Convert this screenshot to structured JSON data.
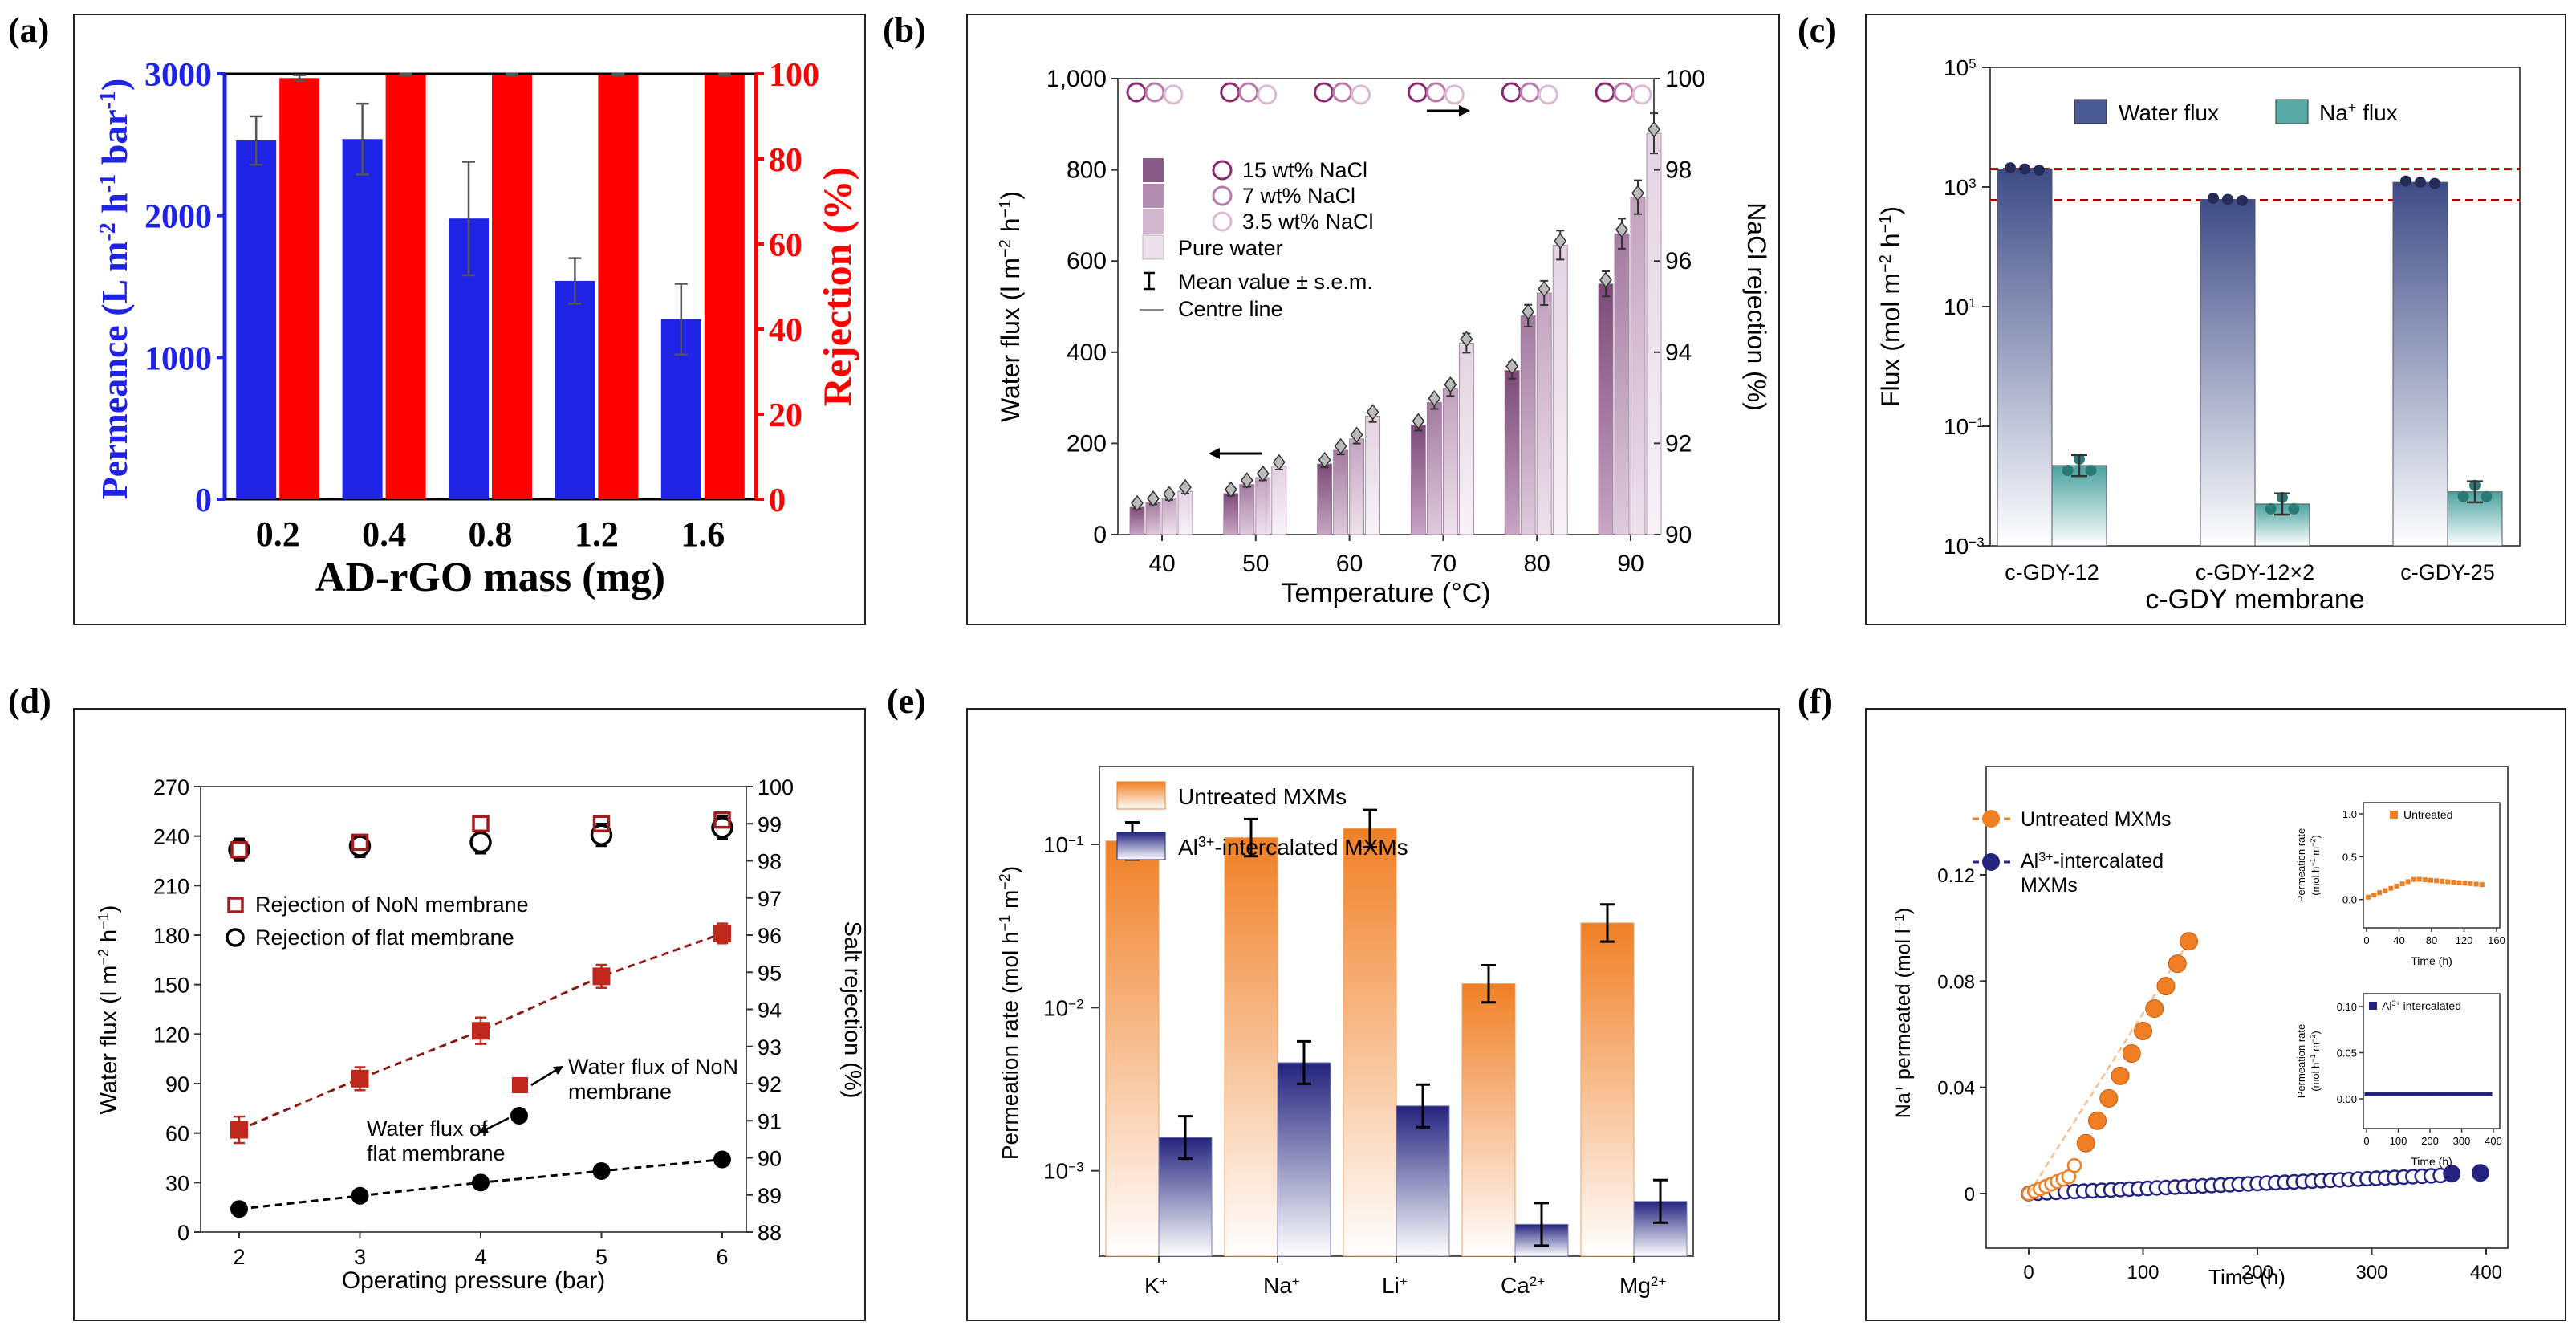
{
  "colors": {
    "blue": "#1f23e6",
    "red": "#ff0000",
    "purple_dark": "#8a5a86",
    "purple_mid": "#b48cb0",
    "purple_light": "#d2b6cf",
    "pure_water": "#ece0ea",
    "gdy_blue": "#4a5a92",
    "gdy_teal": "#57aaa6",
    "orange": "#f07f24",
    "navy": "#23237f",
    "darkred": "#a11c1c"
  },
  "chart_data": [
    {
      "panel": "(a)",
      "type": "bar",
      "categories": [
        "0.2",
        "0.4",
        "0.8",
        "1.2",
        "1.6"
      ],
      "xlabel": "AD-rGO mass (mg)",
      "ylabel_left": "Permeance (L m-2 h-1 bar-1)",
      "ylabel_right": "Rejection (%)",
      "ylim_left": [
        0,
        3000
      ],
      "ylim_right": [
        0,
        100
      ],
      "yticks_left": [
        "0",
        "1000",
        "2000",
        "3000"
      ],
      "yticks_right": [
        "0",
        "20",
        "40",
        "60",
        "80",
        "100"
      ],
      "series": [
        {
          "name": "Permeance",
          "axis": "left",
          "values": [
            2530,
            2540,
            1980,
            1540,
            1270
          ],
          "errors": [
            170,
            250,
            400,
            160,
            250
          ]
        },
        {
          "name": "Rejection",
          "axis": "right",
          "values": [
            99,
            99.8,
            99.8,
            99.8,
            99.8
          ],
          "errors": [
            0.7,
            0.2,
            0.2,
            0.2,
            0.2
          ]
        }
      ]
    },
    {
      "panel": "(b)",
      "type": "bar",
      "categories": [
        "40",
        "50",
        "60",
        "70",
        "80",
        "90"
      ],
      "xlabel": "Temperature (°C)",
      "ylabel_left": "Water flux (l m-2 h-1)",
      "ylabel_right": "NaCl rejection (%)",
      "ylim_left": [
        0,
        1000
      ],
      "ylim_right": [
        90,
        100
      ],
      "yticks_left": [
        "0",
        "200",
        "400",
        "600",
        "800",
        "1,000"
      ],
      "yticks_right": [
        "90",
        "92",
        "94",
        "96",
        "98",
        "100"
      ],
      "legend": [
        "15 wt% NaCl",
        "7 wt% NaCl",
        "3.5 wt% NaCl",
        "Pure water",
        "Mean value ± s.e.m.",
        "Centre line"
      ],
      "series": [
        {
          "name": "15 wt% NaCl",
          "flux": [
            60,
            90,
            155,
            240,
            360,
            550
          ],
          "rejection": [
            99.7,
            99.7,
            99.7,
            99.7,
            99.7,
            99.7
          ]
        },
        {
          "name": "7 wt% NaCl",
          "flux": [
            70,
            110,
            185,
            290,
            480,
            660
          ],
          "rejection": [
            99.7,
            99.7,
            99.7,
            99.7,
            99.7,
            99.7
          ]
        },
        {
          "name": "3.5 wt% NaCl",
          "flux": [
            80,
            125,
            210,
            320,
            530,
            740
          ],
          "rejection": [
            99.65,
            99.65,
            99.65,
            99.65,
            99.65,
            99.65
          ]
        },
        {
          "name": "Pure water",
          "flux": [
            95,
            150,
            260,
            420,
            635,
            880
          ],
          "rejection": []
        }
      ]
    },
    {
      "panel": "(c)",
      "type": "bar",
      "scale": "log",
      "categories": [
        "c-GDY-12",
        "c-GDY-12×2",
        "c-GDY-25"
      ],
      "xlabel": "c-GDY membrane",
      "ylabel": "Flux (mol m-2 h-1)",
      "ylim": [
        0.001,
        100000
      ],
      "yticks": [
        "10-3",
        "10-1",
        "101",
        "103",
        "105"
      ],
      "reference_lines": [
        2000,
        600
      ],
      "series": [
        {
          "name": "Water flux",
          "values": [
            2000,
            620,
            1200
          ]
        },
        {
          "name": "Na+ flux",
          "values": [
            0.022,
            0.005,
            0.008
          ]
        }
      ]
    },
    {
      "panel": "(d)",
      "type": "scatter",
      "xlabel": "Operating pressure (bar)",
      "ylabel_left": "Water flux (l m-2 h-1)",
      "ylabel_right": "Salt rejection (%)",
      "x": [
        2,
        3,
        4,
        5,
        6
      ],
      "xlim": [
        1.7,
        6.3
      ],
      "ylim_left": [
        0,
        270
      ],
      "ylim_right": [
        88,
        100
      ],
      "yticks_left": [
        "0",
        "30",
        "60",
        "90",
        "120",
        "150",
        "180",
        "210",
        "240",
        "270"
      ],
      "yticks_right": [
        "88",
        "89",
        "90",
        "91",
        "92",
        "93",
        "94",
        "95",
        "96",
        "97",
        "98",
        "99",
        "100"
      ],
      "xticks": [
        "2",
        "3",
        "4",
        "5",
        "6"
      ],
      "series": [
        {
          "name": "Rejection of NoN membrane",
          "axis": "right",
          "values": [
            98.3,
            98.5,
            99.0,
            99.0,
            99.1
          ]
        },
        {
          "name": "Rejection of flat membrane",
          "axis": "right",
          "values": [
            98.3,
            98.4,
            98.5,
            98.7,
            98.9
          ]
        },
        {
          "name": "Water flux of NoN membrane",
          "axis": "left",
          "values": [
            62,
            93,
            122,
            155,
            181
          ],
          "errors": [
            8,
            7,
            8,
            7,
            6
          ]
        },
        {
          "name": "Water flux of flat membrane",
          "axis": "left",
          "values": [
            14,
            22,
            30,
            37,
            44
          ]
        }
      ],
      "annotations": [
        "Water flux of NoN membrane",
        "Water flux of flat membrane"
      ]
    },
    {
      "panel": "(e)",
      "type": "bar",
      "scale": "log",
      "categories": [
        "K+",
        "Na+",
        "Li+",
        "Ca2+",
        "Mg2+"
      ],
      "ylabel": "Permeation rate (mol h-1 m-2)",
      "ylim": [
        0.0003,
        0.3
      ],
      "yticks": [
        "10-3",
        "10-2",
        "10-1"
      ],
      "series": [
        {
          "name": "Untreated MXMs",
          "values": [
            0.105,
            0.11,
            0.125,
            0.014,
            0.033
          ]
        },
        {
          "name": "Al3+-intercalated MXMs",
          "values": [
            0.0016,
            0.0046,
            0.0025,
            0.00047,
            0.00065
          ]
        }
      ]
    },
    {
      "panel": "(f)",
      "type": "scatter",
      "xlabel": "Time (h)",
      "ylabel": "Na+ permeated (mol l-1)",
      "xlim": [
        -25,
        420
      ],
      "ylim": [
        -0.008,
        0.135
      ],
      "xticks": [
        "0",
        "100",
        "200",
        "300",
        "400"
      ],
      "yticks": [
        "0",
        "0.04",
        "0.08",
        "0.12"
      ],
      "series": [
        {
          "name": "Untreated MXMs",
          "x_range": [
            0,
            140
          ],
          "y_end": 0.095
        },
        {
          "name": "Al3+-intercalated MXMs",
          "x_range": [
            0,
            395
          ],
          "y_end": 0.008
        }
      ],
      "insets": [
        {
          "title": "Untreated",
          "ylabel": "Permeation rate (mol h-1 m-2)",
          "xlabel": "Time (h)",
          "yticks": [
            "0.0",
            "0.5",
            "1.0"
          ],
          "xticks": [
            "0",
            "40",
            "80",
            "120",
            "160"
          ]
        },
        {
          "title": "Al3+ intercalated",
          "ylabel": "Permeation rate (mol h-1 m-2)",
          "xlabel": "Time (h)",
          "yticks": [
            "0.00",
            "0.05",
            "0.10"
          ],
          "xticks": [
            "0",
            "100",
            "200",
            "300",
            "400"
          ]
        }
      ]
    }
  ],
  "labels": {
    "panel_a": "(a)",
    "panel_b": "(b)",
    "panel_c": "(c)",
    "panel_d": "(d)",
    "panel_e": "(e)",
    "panel_f": "(f)",
    "a_xlabel": "AD-rGO mass (mg)",
    "a_ylabel_left": "Permeance (L m",
    "a_ylabel_left_tail": " bar",
    "a_ylabel_right": "Rejection (%)",
    "b_xlabel": "Temperature (°C)",
    "b_ylabel_left": "Water flux (l m",
    "b_ylabel_right": "NaCl rejection (%)",
    "b_leg1": "15 wt% NaCl",
    "b_leg2": "7 wt% NaCl",
    "b_leg3": "3.5 wt% NaCl",
    "b_leg4": "Pure water",
    "b_leg5": "Mean value ± s.e.m.",
    "b_leg6": "Centre line",
    "c_xlabel": "c-GDY membrane",
    "c_ylabel": "Flux (mol m",
    "c_leg1": "Water flux",
    "c_leg2": "Na",
    "d_xlabel": "Operating pressure (bar)",
    "d_ylabel_left": "Water flux (l m",
    "d_ylabel_right": "Salt rejection (%)",
    "d_leg1": "Rejection of NoN membrane",
    "d_leg2": "Rejection of flat membrane",
    "d_ann1a": "Water flux of NoN",
    "d_ann1b": "membrane",
    "d_ann2a": "Water flux of",
    "d_ann2b": "flat membrane",
    "e_ylabel": "Permeation rate (mol h",
    "e_leg1": "Untreated MXMs",
    "e_leg2": "intercalated MXMs",
    "f_xlabel": "Time (h)",
    "f_ylabel": "Na",
    "f_leg1": "Untreated MXMs",
    "f_leg2": "-intercalated",
    "f_leg2b": "MXMs",
    "f_inset1": "Untreated",
    "f_inset2": "intercalated",
    "f_inset_ylabel": "Permeation rate",
    "f_inset_xlabel": "Time (h)"
  }
}
